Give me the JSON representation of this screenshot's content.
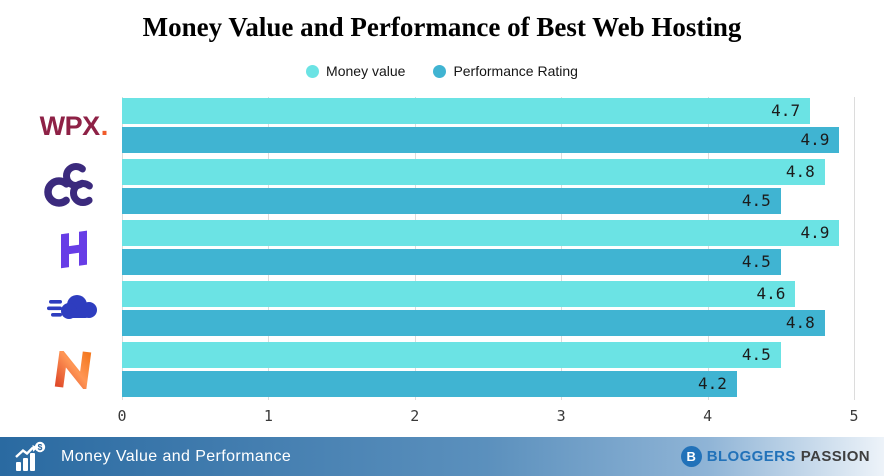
{
  "title": "Money Value and Performance of Best Web Hosting",
  "legend": {
    "money": "Money value",
    "performance": "Performance Rating"
  },
  "chart_data": {
    "type": "bar",
    "orientation": "horizontal",
    "title": "Money Value and Performance of Best Web Hosting",
    "categories": [
      "WPX",
      "CCC",
      "Hostinger",
      "Cloudways",
      "Namecheap"
    ],
    "series": [
      {
        "name": "Money value",
        "values": [
          4.7,
          4.8,
          4.9,
          4.6,
          4.5
        ]
      },
      {
        "name": "Performance Rating",
        "values": [
          4.9,
          4.5,
          4.5,
          4.8,
          4.2
        ]
      }
    ],
    "xlim": [
      0,
      5
    ],
    "x_ticks": [
      0,
      1,
      2,
      3,
      4,
      5
    ],
    "grid": true,
    "legend_position": "top",
    "value_labels": "inside-end"
  },
  "brands": [
    {
      "icon": "wpx-logo",
      "label": "WPX",
      "text": "WPX",
      "dot": "."
    },
    {
      "icon": "triple-c-cloud-logo",
      "label": "CCC"
    },
    {
      "icon": "hostinger-logo",
      "label": "Hostinger"
    },
    {
      "icon": "speed-cloud-logo",
      "label": "Cloudways"
    },
    {
      "icon": "namecheap-logo",
      "label": "Namecheap"
    }
  ],
  "colors": {
    "money": "#6BE3E4",
    "performance": "#40B4D2",
    "grid": "#DCDCDC",
    "axis_text": "#3A3A3A",
    "label_text": "#1B1B1B",
    "wpx": "#8E2146",
    "wpx_dot": "#F05B2A",
    "ccc_purple": "#3B2A7D",
    "hostinger_purple": "#673DE6",
    "cloud_blue": "#2E3DBF",
    "bp_blue": "#2272B9",
    "bp_dark": "#3F3F3F"
  },
  "footer": {
    "label": "Money Value and Performance",
    "badge": "B",
    "brand_blue": "BLOGGERS",
    "brand_dark": "PASSION"
  }
}
